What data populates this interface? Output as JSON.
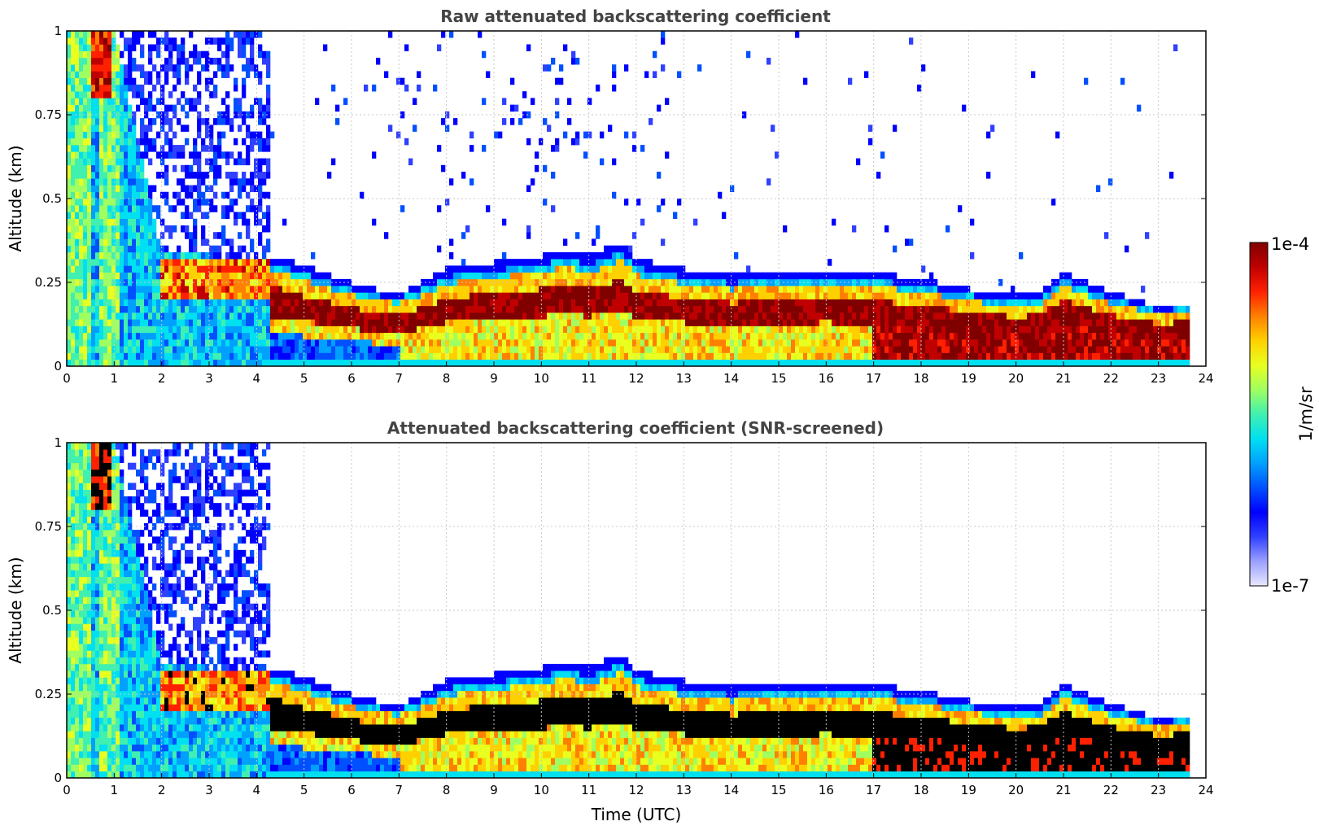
{
  "chart_data": [
    {
      "type": "heatmap",
      "title": "Raw attenuated backscattering coefficient",
      "xlabel": "",
      "ylabel": "Altitude (km)",
      "xlim": [
        0,
        24
      ],
      "ylim": [
        0,
        1
      ],
      "xticks": [
        "0",
        "1",
        "2",
        "3",
        "4",
        "5",
        "6",
        "7",
        "8",
        "9",
        "10",
        "11",
        "12",
        "13",
        "14",
        "15",
        "16",
        "17",
        "18",
        "19",
        "20",
        "21",
        "22",
        "23",
        "24"
      ],
      "yticks": [
        "0",
        "0.25",
        "0.5",
        "0.75",
        "1"
      ],
      "grid": true,
      "screened": false,
      "layer_top_km": {
        "time": [
          0,
          1,
          2,
          3,
          4,
          4.5,
          5,
          6,
          6.5,
          7,
          7.5,
          8,
          9,
          10,
          10.5,
          11,
          11.7,
          12,
          13,
          14,
          15,
          16,
          17,
          18,
          19,
          20,
          20.5,
          21,
          22,
          23,
          23.6
        ],
        "top": [
          1.0,
          1.0,
          0.34,
          0.33,
          0.33,
          0.33,
          0.3,
          0.25,
          0.23,
          0.22,
          0.25,
          0.29,
          0.31,
          0.33,
          0.35,
          0.33,
          0.37,
          0.32,
          0.29,
          0.27,
          0.28,
          0.29,
          0.28,
          0.26,
          0.23,
          0.21,
          0.22,
          0.28,
          0.22,
          0.18,
          0.19
        ]
      }
    },
    {
      "type": "heatmap",
      "title": "Attenuated backscattering coefficient (SNR-screened)",
      "xlabel": "Time (UTC)",
      "ylabel": "Altitude (km)",
      "xlim": [
        0,
        24
      ],
      "ylim": [
        0,
        1
      ],
      "xticks": [
        "0",
        "1",
        "2",
        "3",
        "4",
        "5",
        "6",
        "7",
        "8",
        "9",
        "10",
        "11",
        "12",
        "13",
        "14",
        "15",
        "16",
        "17",
        "18",
        "19",
        "20",
        "21",
        "22",
        "23",
        "24"
      ],
      "yticks": [
        "0",
        "0.25",
        "0.5",
        "0.75",
        "1"
      ],
      "grid": true,
      "screened": true,
      "layer_top_km": {
        "time": [
          0,
          1,
          2,
          3,
          4,
          4.5,
          5,
          6,
          6.5,
          7,
          7.5,
          8,
          9,
          10,
          10.5,
          11,
          11.7,
          12,
          13,
          14,
          15,
          16,
          17,
          18,
          19,
          20,
          20.5,
          21,
          22,
          23,
          23.6
        ],
        "top": [
          1.0,
          1.0,
          0.34,
          0.33,
          0.33,
          0.33,
          0.3,
          0.25,
          0.23,
          0.22,
          0.25,
          0.29,
          0.31,
          0.33,
          0.35,
          0.33,
          0.37,
          0.32,
          0.29,
          0.27,
          0.28,
          0.29,
          0.28,
          0.26,
          0.23,
          0.21,
          0.22,
          0.28,
          0.22,
          0.18,
          0.19
        ]
      }
    }
  ],
  "colorbar": {
    "max_label": "1e-4",
    "min_label": "1e-7",
    "unit_label": "1/m/sr",
    "colors": [
      "#e8e8ff",
      "#9aa0ff",
      "#3040ff",
      "#0000ff",
      "#0050ff",
      "#00a0ff",
      "#00e0f0",
      "#40f0b0",
      "#a0ff60",
      "#e8ff20",
      "#ffd000",
      "#ff8000",
      "#ff2000",
      "#c00000",
      "#800000"
    ]
  },
  "screened_fill_color": "#000000"
}
